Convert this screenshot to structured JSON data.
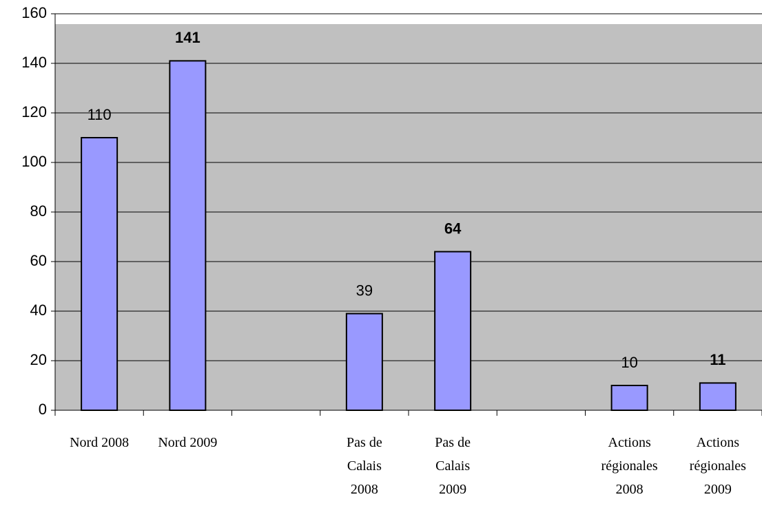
{
  "chart_data": {
    "type": "bar",
    "categories": [
      "Nord 2008",
      "Nord 2009",
      null,
      "Pas de Calais 2008",
      "Pas de Calais 2009",
      null,
      "Actions régionales 2008",
      "Actions régionales 2009"
    ],
    "values": [
      110,
      141,
      null,
      39,
      64,
      null,
      10,
      11
    ],
    "label_bold": [
      false,
      true,
      null,
      false,
      true,
      null,
      false,
      true
    ],
    "color": "#9999ff",
    "ylim": [
      0,
      160
    ],
    "yticks": [
      0,
      20,
      40,
      60,
      80,
      100,
      120,
      140,
      160
    ],
    "grid": true
  }
}
